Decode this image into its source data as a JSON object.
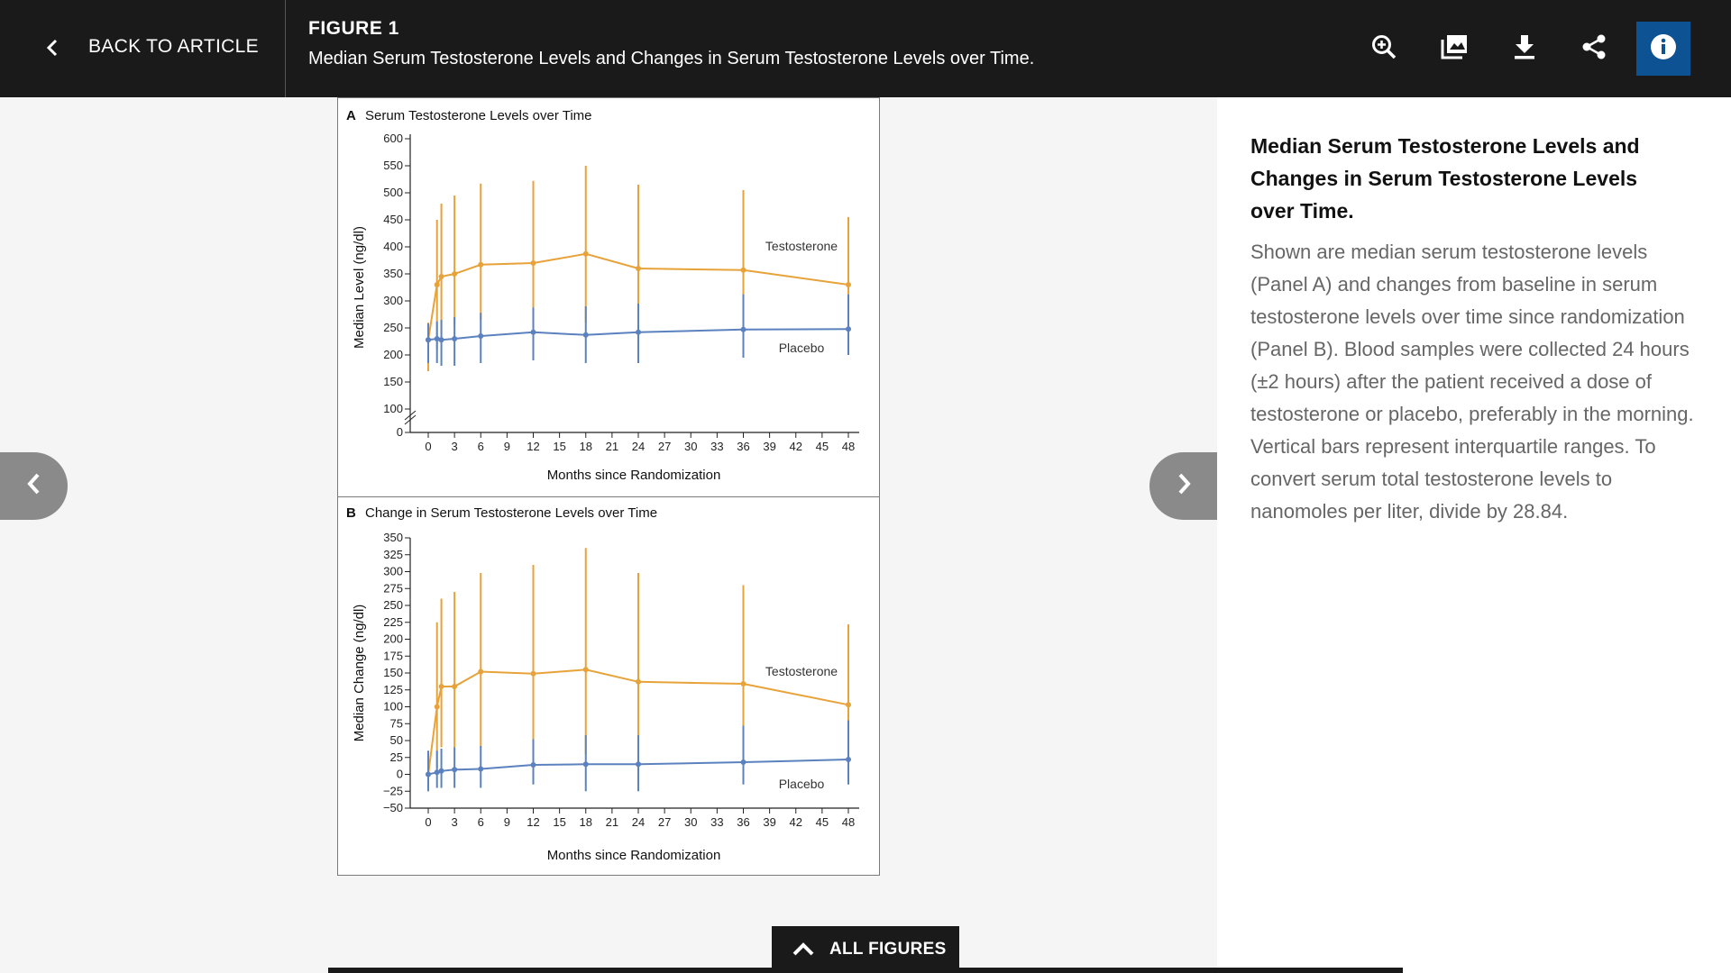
{
  "topbar": {
    "back_label": "BACK TO ARTICLE",
    "figure_label": "FIGURE 1",
    "figure_title": "Median Serum Testosterone Levels and Changes in Serum Testosterone Levels over Time.",
    "tools": [
      "zoom-in-icon",
      "image-gallery-icon",
      "download-icon",
      "share-icon",
      "info-icon"
    ],
    "info_color": "#0d5394"
  },
  "side_panel": {
    "title": "Median Serum Testosterone Levels and Changes in Serum Testosterone Levels over Time.",
    "description": "Shown are median serum testosterone levels (Panel A) and changes from baseline in serum testosterone levels over time since randomization (Panel B). Blood samples were collected 24 hours (±2 hours) after the patient received a dose of testosterone or placebo, preferably in the morning. Vertical bars represent interquartile ranges. To convert serum total testosterone levels to nanomoles per liter, divide by 28.84."
  },
  "footer": {
    "all_figures_label": "ALL FIGURES"
  },
  "colors": {
    "testosterone": "#e8a23a",
    "placebo": "#5b82bf"
  },
  "chart_data": [
    {
      "type": "line",
      "panel": "A",
      "title": "Serum Testosterone Levels over Time",
      "xlabel": "Months since Randomization",
      "ylabel": "Median Level (ng/dl)",
      "xlim": [
        0,
        48
      ],
      "xticks": [
        0,
        3,
        6,
        9,
        12,
        15,
        18,
        21,
        24,
        27,
        30,
        33,
        36,
        39,
        42,
        45,
        48
      ],
      "yticks": [
        0,
        100,
        150,
        200,
        250,
        300,
        350,
        400,
        450,
        500,
        550,
        600
      ],
      "axis_break": "between 0 and 100",
      "x": [
        0,
        1,
        1.5,
        3,
        6,
        12,
        18,
        24,
        36,
        48
      ],
      "series": [
        {
          "name": "Testosterone",
          "color": "#e8a23a",
          "values": [
            228,
            330,
            345,
            350,
            367,
            370,
            387,
            360,
            357,
            330
          ],
          "q1": [
            170,
            210,
            240,
            255,
            265,
            270,
            260,
            260,
            260,
            235
          ],
          "q3": [
            260,
            450,
            480,
            495,
            517,
            522,
            550,
            515,
            505,
            455
          ]
        },
        {
          "name": "Placebo",
          "color": "#5b82bf",
          "values": [
            228,
            230,
            228,
            230,
            235,
            242,
            237,
            242,
            247,
            248
          ],
          "q1": [
            185,
            185,
            180,
            180,
            185,
            190,
            185,
            185,
            195,
            200
          ],
          "q3": [
            258,
            262,
            265,
            270,
            278,
            288,
            290,
            295,
            312,
            312
          ]
        }
      ]
    },
    {
      "type": "line",
      "panel": "B",
      "title": "Change in Serum Testosterone Levels over Time",
      "xlabel": "Months since Randomization",
      "ylabel": "Median Change (ng/dl)",
      "xlim": [
        0,
        48
      ],
      "xticks": [
        0,
        3,
        6,
        9,
        12,
        15,
        18,
        21,
        24,
        27,
        30,
        33,
        36,
        39,
        42,
        45,
        48
      ],
      "yticks": [
        -50,
        -25,
        0,
        25,
        50,
        75,
        100,
        125,
        150,
        175,
        200,
        225,
        250,
        275,
        300,
        325,
        350
      ],
      "x": [
        0,
        1,
        1.5,
        3,
        6,
        12,
        18,
        24,
        36,
        48
      ],
      "series": [
        {
          "name": "Testosterone",
          "color": "#e8a23a",
          "values": [
            0,
            100,
            130,
            130,
            152,
            149,
            155,
            137,
            134,
            103
          ],
          "q1": [
            -25,
            10,
            40,
            40,
            40,
            40,
            30,
            35,
            30,
            10
          ],
          "q3": [
            30,
            225,
            260,
            270,
            298,
            310,
            335,
            298,
            280,
            222
          ]
        },
        {
          "name": "Placebo",
          "color": "#5b82bf",
          "values": [
            0,
            3,
            5,
            7,
            8,
            14,
            15,
            15,
            18,
            22
          ],
          "q1": [
            -25,
            -20,
            -20,
            -20,
            -20,
            -15,
            -25,
            -25,
            -15,
            -15
          ],
          "q3": [
            35,
            35,
            38,
            40,
            42,
            52,
            58,
            58,
            72,
            80
          ]
        }
      ]
    }
  ]
}
